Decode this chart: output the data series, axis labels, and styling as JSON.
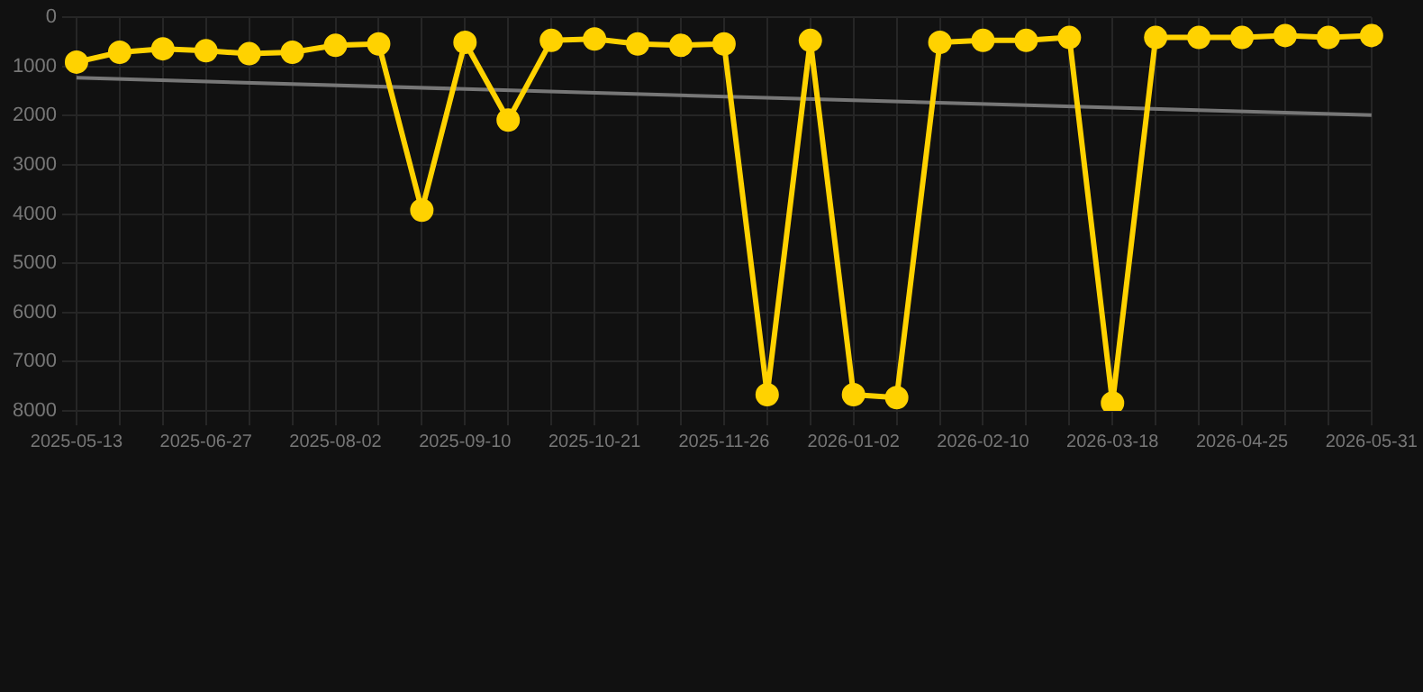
{
  "chart_data": {
    "type": "line",
    "categories": [
      "2025-05-13",
      null,
      null,
      "2025-06-27",
      null,
      null,
      "2025-08-02",
      null,
      null,
      "2025-09-10",
      null,
      null,
      "2025-10-21",
      null,
      null,
      "2025-11-26",
      null,
      null,
      "2026-01-02",
      null,
      null,
      "2026-02-10",
      null,
      null,
      "2026-03-18",
      null,
      null,
      "2026-04-25",
      null,
      null,
      "2026-05-31"
    ],
    "series": [
      {
        "color": "#ffd200",
        "marker": "circle",
        "values": [
          910,
          710,
          640,
          680,
          740,
          710,
          570,
          540,
          3920,
          510,
          2090,
          470,
          440,
          540,
          570,
          540,
          7670,
          470,
          7670,
          7730,
          510,
          470,
          470,
          410,
          7840,
          410,
          410,
          410,
          370,
          410,
          370
        ]
      },
      {
        "type": "line",
        "color": "#777777",
        "marker": "none",
        "values": [
          1230,
          null,
          null,
          null,
          null,
          null,
          null,
          null,
          null,
          null,
          null,
          null,
          null,
          null,
          null,
          null,
          null,
          null,
          null,
          null,
          null,
          null,
          null,
          null,
          null,
          null,
          null,
          null,
          null,
          null,
          1990
        ]
      }
    ],
    "ylim": [
      8000,
      0
    ],
    "yticks": [
      0,
      1000,
      2000,
      3000,
      4000,
      5000,
      6000,
      7000,
      8000
    ],
    "grid": true,
    "legend": false
  }
}
